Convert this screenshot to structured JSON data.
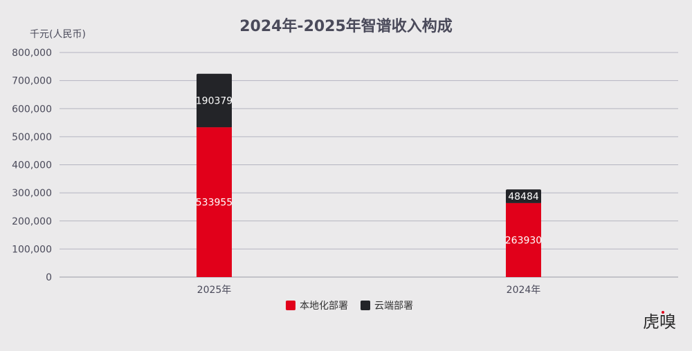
{
  "chart_data": {
    "type": "bar",
    "stacked": true,
    "title": "2024年-2025年智谱收入构成",
    "ylabel": "千元(人民币)",
    "categories": [
      "2025年",
      "2024年"
    ],
    "series": [
      {
        "name": "本地化部署",
        "color": "#e1001a",
        "values": [
          533955,
          263930
        ]
      },
      {
        "name": "云端部署",
        "color": "#232428",
        "values": [
          190379,
          48484
        ]
      }
    ],
    "ylim": [
      0,
      800000
    ],
    "yticks": [
      0,
      100000,
      200000,
      300000,
      400000,
      500000,
      600000,
      700000,
      800000
    ],
    "ytick_labels": [
      "0",
      "100,000",
      "200,000",
      "300,000",
      "400,000",
      "500,000",
      "600,000",
      "700,000",
      "800,000"
    ],
    "grid": true,
    "legend_position": "bottom-center"
  },
  "watermark": {
    "text": "虎嗅",
    "accent": "#e1001a"
  }
}
